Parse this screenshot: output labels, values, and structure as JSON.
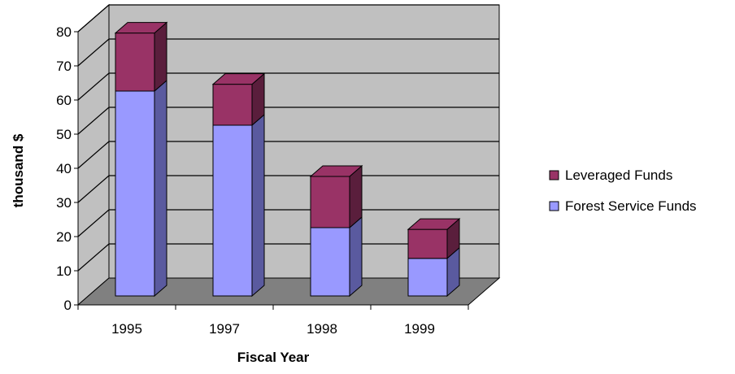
{
  "chart_data": {
    "type": "bar",
    "stacked": true,
    "three_d": true,
    "categories": [
      "1995",
      "1997",
      "1998",
      "1999"
    ],
    "series": [
      {
        "name": "Forest Service Funds",
        "values": [
          60,
          50,
          20,
          11
        ],
        "color": "#9999ff",
        "side_color": "#5a5a9f"
      },
      {
        "name": "Leveraged Funds",
        "values": [
          17,
          12,
          15,
          8.5
        ],
        "color": "#993366",
        "side_color": "#5a1e3c"
      }
    ],
    "legend_order": [
      "Leveraged Funds",
      "Forest Service Funds"
    ],
    "title": "",
    "xlabel": "Fiscal Year",
    "ylabel": "thousand $",
    "ylim": [
      0,
      80
    ],
    "yticks": [
      0,
      10,
      20,
      30,
      40,
      50,
      60,
      70,
      80
    ],
    "grid": true,
    "legend_position": "right",
    "wall_color": "#c0c0c0",
    "floor_color": "#808080"
  }
}
